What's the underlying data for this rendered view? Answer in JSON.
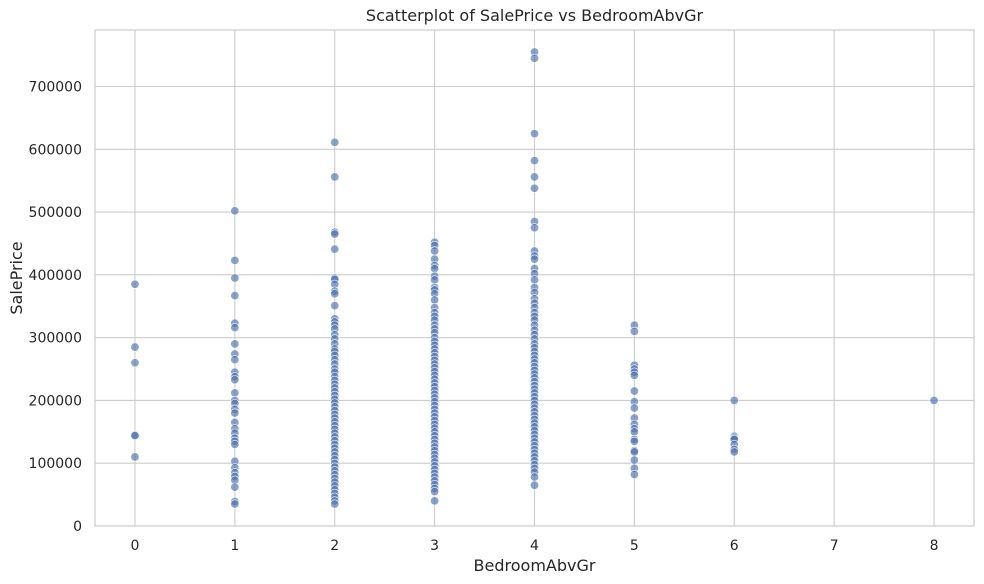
{
  "chart_data": {
    "type": "scatter",
    "title": "Scatterplot of SalePrice vs BedroomAbvGr",
    "xlabel": "BedroomAbvGr",
    "ylabel": "SalePrice",
    "xlim": [
      -0.4,
      8.4
    ],
    "ylim": [
      0,
      790000
    ],
    "xticks": [
      0,
      1,
      2,
      3,
      4,
      5,
      6,
      7,
      8
    ],
    "yticks": [
      0,
      100000,
      200000,
      300000,
      400000,
      500000,
      600000,
      700000
    ],
    "grid": true,
    "marker_color": "#4c72b0",
    "marker_alpha": 0.65,
    "series": [
      {
        "points": [
          [
            0,
            385000
          ],
          [
            0,
            285000
          ],
          [
            0,
            260000
          ],
          [
            0,
            145000
          ],
          [
            0,
            144000
          ],
          [
            0,
            110000
          ],
          [
            1,
            502000
          ],
          [
            1,
            423000
          ],
          [
            1,
            395000
          ],
          [
            1,
            367000
          ],
          [
            1,
            323000
          ],
          [
            1,
            316000
          ],
          [
            1,
            290000
          ],
          [
            1,
            274000
          ],
          [
            1,
            265000
          ],
          [
            1,
            245000
          ],
          [
            1,
            238000
          ],
          [
            1,
            233000
          ],
          [
            1,
            212000
          ],
          [
            1,
            200000
          ],
          [
            1,
            195000
          ],
          [
            1,
            186000
          ],
          [
            1,
            180000
          ],
          [
            1,
            165000
          ],
          [
            1,
            155000
          ],
          [
            1,
            148000
          ],
          [
            1,
            140000
          ],
          [
            1,
            135000
          ],
          [
            1,
            130000
          ],
          [
            1,
            103000
          ],
          [
            1,
            93000
          ],
          [
            1,
            85000
          ],
          [
            1,
            79000
          ],
          [
            1,
            73000
          ],
          [
            1,
            62000
          ],
          [
            1,
            39000
          ],
          [
            1,
            35000
          ],
          [
            2,
            611000
          ],
          [
            2,
            556000
          ],
          [
            2,
            468000
          ],
          [
            2,
            465000
          ],
          [
            2,
            441000
          ],
          [
            2,
            395000
          ],
          [
            2,
            393000
          ],
          [
            2,
            385000
          ],
          [
            2,
            374000
          ],
          [
            2,
            370000
          ],
          [
            2,
            351000
          ],
          [
            2,
            330000
          ],
          [
            2,
            325000
          ],
          [
            2,
            320000
          ],
          [
            2,
            314000
          ],
          [
            2,
            305000
          ],
          [
            2,
            298000
          ],
          [
            2,
            290000
          ],
          [
            2,
            282000
          ],
          [
            2,
            278000
          ],
          [
            2,
            272000
          ],
          [
            2,
            265000
          ],
          [
            2,
            258000
          ],
          [
            2,
            250000
          ],
          [
            2,
            245000
          ],
          [
            2,
            238000
          ],
          [
            2,
            232000
          ],
          [
            2,
            226000
          ],
          [
            2,
            220000
          ],
          [
            2,
            214000
          ],
          [
            2,
            208000
          ],
          [
            2,
            202000
          ],
          [
            2,
            196000
          ],
          [
            2,
            190000
          ],
          [
            2,
            184000
          ],
          [
            2,
            178000
          ],
          [
            2,
            172000
          ],
          [
            2,
            166000
          ],
          [
            2,
            160000
          ],
          [
            2,
            154000
          ],
          [
            2,
            148000
          ],
          [
            2,
            142000
          ],
          [
            2,
            136000
          ],
          [
            2,
            130000
          ],
          [
            2,
            124000
          ],
          [
            2,
            118000
          ],
          [
            2,
            112000
          ],
          [
            2,
            106000
          ],
          [
            2,
            100000
          ],
          [
            2,
            94000
          ],
          [
            2,
            88000
          ],
          [
            2,
            82000
          ],
          [
            2,
            76000
          ],
          [
            2,
            70000
          ],
          [
            2,
            64000
          ],
          [
            2,
            58000
          ],
          [
            2,
            52000
          ],
          [
            2,
            46000
          ],
          [
            2,
            40000
          ],
          [
            2,
            35000
          ],
          [
            3,
            452000
          ],
          [
            3,
            447000
          ],
          [
            3,
            438000
          ],
          [
            3,
            425000
          ],
          [
            3,
            415000
          ],
          [
            3,
            410000
          ],
          [
            3,
            398000
          ],
          [
            3,
            392000
          ],
          [
            3,
            380000
          ],
          [
            3,
            376000
          ],
          [
            3,
            370000
          ],
          [
            3,
            360000
          ],
          [
            3,
            348000
          ],
          [
            3,
            340000
          ],
          [
            3,
            334000
          ],
          [
            3,
            328000
          ],
          [
            3,
            320000
          ],
          [
            3,
            314000
          ],
          [
            3,
            308000
          ],
          [
            3,
            300000
          ],
          [
            3,
            294000
          ],
          [
            3,
            288000
          ],
          [
            3,
            282000
          ],
          [
            3,
            276000
          ],
          [
            3,
            270000
          ],
          [
            3,
            264000
          ],
          [
            3,
            258000
          ],
          [
            3,
            252000
          ],
          [
            3,
            246000
          ],
          [
            3,
            240000
          ],
          [
            3,
            234000
          ],
          [
            3,
            228000
          ],
          [
            3,
            222000
          ],
          [
            3,
            216000
          ],
          [
            3,
            210000
          ],
          [
            3,
            204000
          ],
          [
            3,
            198000
          ],
          [
            3,
            192000
          ],
          [
            3,
            186000
          ],
          [
            3,
            180000
          ],
          [
            3,
            174000
          ],
          [
            3,
            168000
          ],
          [
            3,
            162000
          ],
          [
            3,
            156000
          ],
          [
            3,
            150000
          ],
          [
            3,
            144000
          ],
          [
            3,
            138000
          ],
          [
            3,
            132000
          ],
          [
            3,
            126000
          ],
          [
            3,
            120000
          ],
          [
            3,
            114000
          ],
          [
            3,
            108000
          ],
          [
            3,
            102000
          ],
          [
            3,
            96000
          ],
          [
            3,
            90000
          ],
          [
            3,
            84000
          ],
          [
            3,
            78000
          ],
          [
            3,
            72000
          ],
          [
            3,
            66000
          ],
          [
            3,
            60000
          ],
          [
            3,
            55000
          ],
          [
            3,
            40000
          ],
          [
            4,
            755000
          ],
          [
            4,
            745000
          ],
          [
            4,
            625000
          ],
          [
            4,
            582000
          ],
          [
            4,
            556000
          ],
          [
            4,
            538000
          ],
          [
            4,
            485000
          ],
          [
            4,
            475000
          ],
          [
            4,
            438000
          ],
          [
            4,
            430000
          ],
          [
            4,
            425000
          ],
          [
            4,
            410000
          ],
          [
            4,
            402000
          ],
          [
            4,
            392000
          ],
          [
            4,
            380000
          ],
          [
            4,
            372000
          ],
          [
            4,
            362000
          ],
          [
            4,
            355000
          ],
          [
            4,
            348000
          ],
          [
            4,
            340000
          ],
          [
            4,
            334000
          ],
          [
            4,
            328000
          ],
          [
            4,
            320000
          ],
          [
            4,
            312000
          ],
          [
            4,
            305000
          ],
          [
            4,
            298000
          ],
          [
            4,
            290000
          ],
          [
            4,
            284000
          ],
          [
            4,
            278000
          ],
          [
            4,
            272000
          ],
          [
            4,
            266000
          ],
          [
            4,
            260000
          ],
          [
            4,
            254000
          ],
          [
            4,
            248000
          ],
          [
            4,
            242000
          ],
          [
            4,
            236000
          ],
          [
            4,
            230000
          ],
          [
            4,
            224000
          ],
          [
            4,
            218000
          ],
          [
            4,
            212000
          ],
          [
            4,
            206000
          ],
          [
            4,
            200000
          ],
          [
            4,
            194000
          ],
          [
            4,
            188000
          ],
          [
            4,
            182000
          ],
          [
            4,
            176000
          ],
          [
            4,
            170000
          ],
          [
            4,
            164000
          ],
          [
            4,
            158000
          ],
          [
            4,
            152000
          ],
          [
            4,
            146000
          ],
          [
            4,
            140000
          ],
          [
            4,
            134000
          ],
          [
            4,
            128000
          ],
          [
            4,
            122000
          ],
          [
            4,
            116000
          ],
          [
            4,
            110000
          ],
          [
            4,
            104000
          ],
          [
            4,
            98000
          ],
          [
            4,
            92000
          ],
          [
            4,
            86000
          ],
          [
            4,
            78000
          ],
          [
            4,
            65000
          ],
          [
            5,
            320000
          ],
          [
            5,
            310000
          ],
          [
            5,
            256000
          ],
          [
            5,
            250000
          ],
          [
            5,
            245000
          ],
          [
            5,
            240000
          ],
          [
            5,
            215000
          ],
          [
            5,
            198000
          ],
          [
            5,
            188000
          ],
          [
            5,
            172000
          ],
          [
            5,
            162000
          ],
          [
            5,
            155000
          ],
          [
            5,
            150000
          ],
          [
            5,
            138000
          ],
          [
            5,
            135000
          ],
          [
            5,
            120000
          ],
          [
            5,
            118000
          ],
          [
            5,
            105000
          ],
          [
            5,
            92000
          ],
          [
            5,
            82000
          ],
          [
            6,
            200000
          ],
          [
            6,
            143000
          ],
          [
            6,
            140000
          ],
          [
            6,
            138000
          ],
          [
            6,
            130000
          ],
          [
            6,
            122000
          ],
          [
            6,
            118000
          ],
          [
            8,
            200000
          ]
        ]
      }
    ]
  }
}
